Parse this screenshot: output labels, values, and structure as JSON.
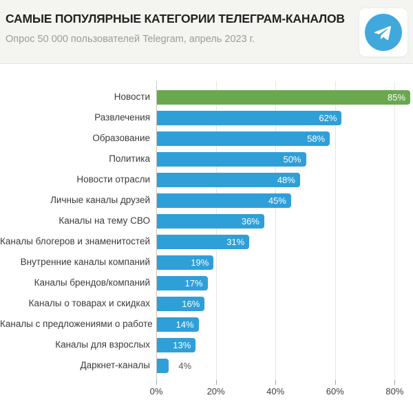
{
  "header": {
    "title": "САМЫЕ ПОПУЛЯРНЫЕ КАТЕГОРИИ ТЕЛЕГРАМ-КАНАЛОВ",
    "subtitle": "Опрос 50 000 пользователей Telegram, апрель 2023 г.",
    "logo": {
      "icon": "telegram-paper-plane-icon",
      "circle_color": "#41a8dc",
      "plane_color": "#ffffff"
    }
  },
  "chart_data": {
    "type": "bar",
    "orientation": "horizontal",
    "title": "САМЫЕ ПОПУЛЯРНЫЕ КАТЕГОРИИ ТЕЛЕГРАМ-КАНАЛОВ",
    "categories": [
      "Новости",
      "Развлечения",
      "Образование",
      "Политика",
      "Новости отрасли",
      "Личные каналы друзей",
      "Каналы на тему СВО",
      "Каналы блогеров и знаменитостей",
      "Внутренние каналы компаний",
      "Каналы брендов/компаний",
      "Каналы о товарах и скидках",
      "Каналы с предложениями о работе",
      "Каналы для взрослых",
      "Даркнет-каналы"
    ],
    "values": [
      85,
      62,
      58,
      50,
      48,
      45,
      36,
      31,
      19,
      17,
      16,
      14,
      13,
      4
    ],
    "value_labels": [
      "85%",
      "62%",
      "58%",
      "50%",
      "48%",
      "45%",
      "36%",
      "31%",
      "19%",
      "17%",
      "16%",
      "14%",
      "13%",
      "4%"
    ],
    "x_ticks": [
      "0%",
      "20%",
      "40%",
      "60%",
      "80%"
    ],
    "x_tick_values": [
      0,
      20,
      40,
      60,
      80
    ],
    "xlim": [
      0,
      86
    ],
    "grid": "vertical",
    "legend": "none",
    "colors": {
      "highlight_bar": "#6aa84f",
      "default_bar": "#2f9fd8",
      "highlight_index": 0,
      "value_label_inside": "#ffffff",
      "value_label_outside": "#555553"
    }
  }
}
